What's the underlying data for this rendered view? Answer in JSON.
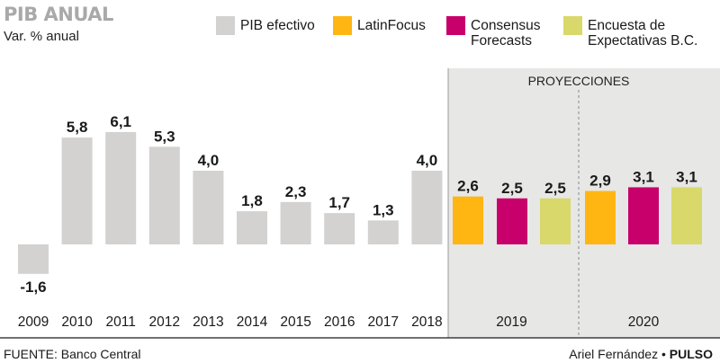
{
  "header": {
    "title": "PIB ANUAL",
    "subtitle": "Var. % anual"
  },
  "legend": [
    {
      "label": "PIB efectivo",
      "color": "#d3d2d0"
    },
    {
      "label": "LatinFocus",
      "color": "#ffb612"
    },
    {
      "label": "Consensus\nForecasts",
      "color": "#c8006b"
    },
    {
      "label": "Encuesta de\nExpectativas B.C.",
      "color": "#d8d96a"
    }
  ],
  "footer": {
    "source": "FUENTE: Banco Central",
    "author": "Ariel Fernández",
    "separator": "•",
    "outlet": "PULSO"
  },
  "chart_data": {
    "type": "bar",
    "title": "PIB ANUAL",
    "ylabel": "Var. % anual",
    "actual": {
      "name": "PIB efectivo",
      "color": "#d3d2d0",
      "categories": [
        "2009",
        "2010",
        "2011",
        "2012",
        "2013",
        "2014",
        "2015",
        "2016",
        "2017",
        "2018"
      ],
      "values": [
        -1.6,
        5.8,
        6.1,
        5.3,
        4.0,
        1.8,
        2.3,
        1.7,
        1.3,
        4.0
      ],
      "labels": [
        "-1,6",
        "5,8",
        "6,1",
        "5,3",
        "4,0",
        "1,8",
        "2,3",
        "1,7",
        "1,3",
        "4,0"
      ]
    },
    "projections": {
      "panel_label": "PROYECCIONES",
      "panel_color": "#e7e7e5",
      "groups": [
        {
          "year": "2019",
          "values": [
            2.6,
            2.5,
            2.5
          ],
          "labels": [
            "2,6",
            "2,5",
            "2,5"
          ]
        },
        {
          "year": "2020",
          "values": [
            2.9,
            3.1,
            3.1
          ],
          "labels": [
            "2,9",
            "3,1",
            "3,1"
          ]
        }
      ],
      "series_names": [
        "LatinFocus",
        "Consensus Forecasts",
        "Encuesta de Expectativas B.C."
      ],
      "series_colors": [
        "#ffb612",
        "#c8006b",
        "#d8d96a"
      ]
    },
    "ylim": [
      -2,
      6.5
    ],
    "grid": false
  }
}
